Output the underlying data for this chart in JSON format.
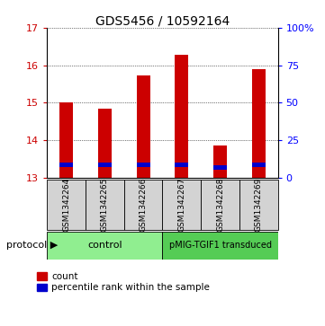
{
  "title": "GDS5456 / 10592164",
  "samples": [
    "GSM1342264",
    "GSM1342265",
    "GSM1342266",
    "GSM1342267",
    "GSM1342268",
    "GSM1342269"
  ],
  "bar_bottom": 13.0,
  "bar_tops": [
    15.02,
    14.85,
    15.72,
    16.28,
    13.87,
    15.9
  ],
  "blue_bottoms": [
    13.28,
    13.28,
    13.28,
    13.28,
    13.2,
    13.28
  ],
  "blue_tops": [
    13.4,
    13.4,
    13.4,
    13.4,
    13.32,
    13.4
  ],
  "red_color": "#cc0000",
  "blue_color": "#0000cc",
  "ylim_left": [
    13,
    17
  ],
  "ylim_right": [
    0,
    100
  ],
  "yticks_left": [
    13,
    14,
    15,
    16,
    17
  ],
  "yticks_right": [
    0,
    25,
    50,
    75,
    100
  ],
  "ytick_labels_right": [
    "0",
    "25",
    "50",
    "75",
    "100%"
  ],
  "control_label": "control",
  "pmig_label": "pMIG-TGIF1 transduced",
  "control_color": "#90EE90",
  "pmig_color": "#55cc55",
  "sample_bg_color": "#d3d3d3",
  "protocol_label": "protocol",
  "legend_count": "count",
  "legend_pct": "percentile rank within the sample",
  "bar_width": 0.35
}
